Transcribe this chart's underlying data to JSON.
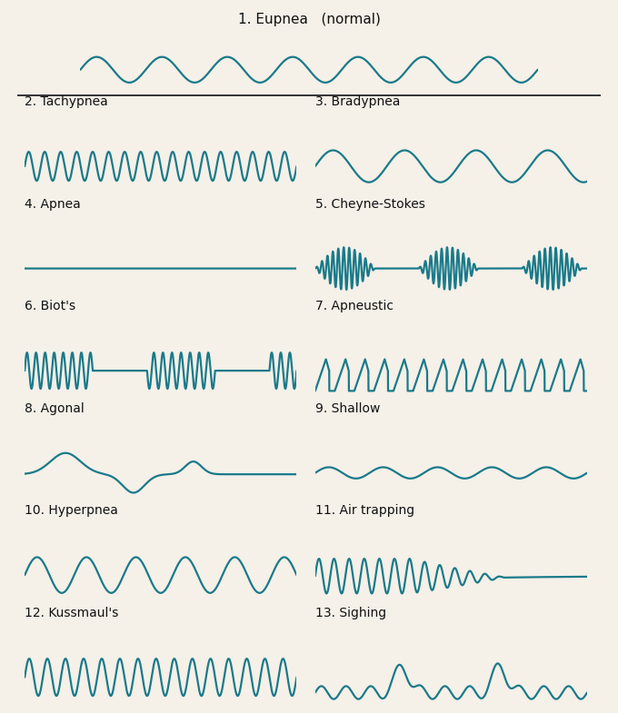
{
  "bg_color": "#f5f0e8",
  "wave_color": "#1a7a8a",
  "text_color": "#111111",
  "line_color": "#333333",
  "panels": [
    {
      "id": 1,
      "label": "1. Eupnea   (normal)",
      "row": 0,
      "col": 0,
      "colspan": 2,
      "type": "eupnea"
    },
    {
      "id": 2,
      "label": "2. Tachypnea",
      "row": 1,
      "col": 0,
      "colspan": 1,
      "type": "tachypnea"
    },
    {
      "id": 3,
      "label": "3. Bradypnea",
      "row": 1,
      "col": 1,
      "colspan": 1,
      "type": "bradypnea"
    },
    {
      "id": 4,
      "label": "4. Apnea",
      "row": 2,
      "col": 0,
      "colspan": 1,
      "type": "apnea"
    },
    {
      "id": 5,
      "label": "5. Cheyne-Stokes",
      "row": 2,
      "col": 1,
      "colspan": 1,
      "type": "cheyne_stokes"
    },
    {
      "id": 6,
      "label": "6. Biot's",
      "row": 3,
      "col": 0,
      "colspan": 1,
      "type": "biots"
    },
    {
      "id": 7,
      "label": "7. Apneustic",
      "row": 3,
      "col": 1,
      "colspan": 1,
      "type": "apneustic"
    },
    {
      "id": 8,
      "label": "8. Agonal",
      "row": 4,
      "col": 0,
      "colspan": 1,
      "type": "agonal"
    },
    {
      "id": 9,
      "label": "9. Shallow",
      "row": 4,
      "col": 1,
      "colspan": 1,
      "type": "shallow"
    },
    {
      "id": 10,
      "label": "10. Hyperpnea",
      "row": 5,
      "col": 0,
      "colspan": 1,
      "type": "hyperpnea"
    },
    {
      "id": 11,
      "label": "11. Air trapping",
      "row": 5,
      "col": 1,
      "colspan": 1,
      "type": "air_trapping"
    },
    {
      "id": 12,
      "label": "12. Kussmaul's",
      "row": 6,
      "col": 0,
      "colspan": 1,
      "type": "kussmaul"
    },
    {
      "id": 13,
      "label": "13. Sighing",
      "row": 6,
      "col": 1,
      "colspan": 1,
      "type": "sighing"
    }
  ]
}
